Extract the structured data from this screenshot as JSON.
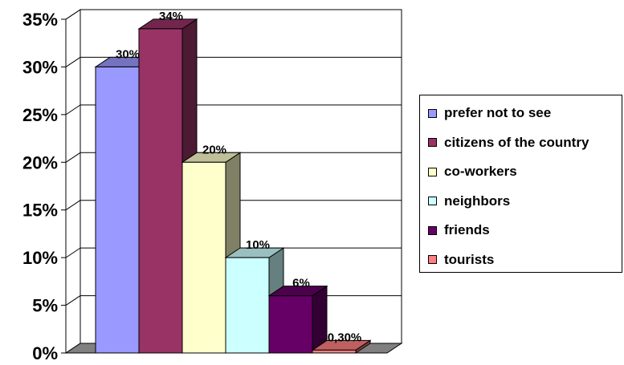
{
  "chart_data": {
    "type": "bar",
    "categories": [
      "prefer not to see",
      "citizens of the country",
      "co-workers",
      "neighbors",
      "friends",
      "tourists"
    ],
    "values": [
      30,
      34,
      20,
      10,
      6,
      0.3
    ],
    "data_labels": [
      "30%",
      "34%",
      "20%",
      "10%",
      "6%",
      "0,30%"
    ],
    "ylim": [
      0,
      35
    ],
    "yticks": [
      0,
      5,
      10,
      15,
      20,
      25,
      30,
      35
    ],
    "ytick_labels": [
      "0%",
      "5%",
      "10%",
      "15%",
      "20%",
      "25%",
      "30%",
      "35%"
    ],
    "grid": true,
    "legend_position": "right",
    "three_d": true
  },
  "colors": [
    "#9999FF",
    "#993366",
    "#FFFFCC",
    "#CCFFFF",
    "#660066",
    "#FF8080"
  ],
  "side_colors": [
    "#4d4d80",
    "#4d1a33",
    "#808066",
    "#668080",
    "#330033",
    "#804040"
  ],
  "top_colors": [
    "#7373bf",
    "#73264d",
    "#bfbf99",
    "#99bfbf",
    "#4d004d",
    "#bf6060"
  ]
}
